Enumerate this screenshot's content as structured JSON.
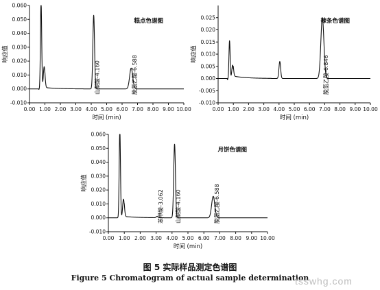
{
  "figure": {
    "caption_cn": "图 5 实际样品测定色谱图",
    "caption_en": "Figure 5 Chromatogram of actual sample determination",
    "watermark": "tsswhg.com"
  },
  "chart_data": [
    {
      "type": "line",
      "title": "糕点色谱图",
      "xlabel": "时间 (min)",
      "ylabel": "响应值",
      "xlim": [
        0,
        10
      ],
      "ylim": [
        -0.01,
        0.06
      ],
      "xticks": [
        "0.00",
        "1.00",
        "2.00",
        "3.00",
        "4.00",
        "5.00",
        "6.00",
        "7.00",
        "8.00",
        "9.00",
        "10.00"
      ],
      "yticks": [
        "-0.010",
        "0.000",
        "0.010",
        "0.020",
        "0.030",
        "0.040",
        "0.050",
        "0.060"
      ],
      "peaks": [
        {
          "rt": 0.75,
          "height": 0.064
        },
        {
          "rt": 0.95,
          "height": 0.0165
        },
        {
          "rt": 4.16,
          "height": 0.053
        },
        {
          "rt": 6.588,
          "height": 0.015
        }
      ],
      "annotations": [
        {
          "x": 4.16,
          "text": "山梨酸-4.160"
        },
        {
          "x": 6.588,
          "text": "脱氢乙酸-6.588"
        }
      ]
    },
    {
      "type": "line",
      "title": "辣条色谱图",
      "xlabel": "时间 (min)",
      "ylabel": "响应值",
      "xlim": [
        0,
        10
      ],
      "ylim": [
        -0.01,
        0.03
      ],
      "xticks": [
        "0.00",
        "1.00",
        "2.00",
        "3.00",
        "4.00",
        "5.00",
        "6.00",
        "7.00",
        "8.00",
        "9.00",
        "10.00"
      ],
      "yticks": [
        "-0.010",
        "-0.005",
        "0.000",
        "0.005",
        "0.010",
        "0.015",
        "0.020",
        "0.025"
      ],
      "peaks": [
        {
          "rt": 0.75,
          "height": 0.016
        },
        {
          "rt": 0.95,
          "height": 0.006
        },
        {
          "rt": 4.05,
          "height": 0.007
        },
        {
          "rt": 6.846,
          "height": 0.025
        }
      ],
      "annotations": [
        {
          "x": 6.846,
          "text": "脱氢乙酸-6.846"
        }
      ]
    },
    {
      "type": "line",
      "title": "月饼色谱图",
      "xlabel": "时间 (min)",
      "ylabel": "响应值",
      "xlim": [
        0,
        10
      ],
      "ylim": [
        -0.01,
        0.06
      ],
      "xticks": [
        "0.00",
        "1.00",
        "2.00",
        "3.00",
        "4.00",
        "5.00",
        "6.00",
        "7.00",
        "8.00",
        "9.00",
        "10.00"
      ],
      "yticks": [
        "-0.010",
        "0.000",
        "0.010",
        "0.020",
        "0.030",
        "0.040",
        "0.050",
        "0.060"
      ],
      "peaks": [
        {
          "rt": 0.72,
          "height": 0.064
        },
        {
          "rt": 0.95,
          "height": 0.014
        },
        {
          "rt": 3.062,
          "height": 0.001
        },
        {
          "rt": 4.16,
          "height": 0.053
        },
        {
          "rt": 6.588,
          "height": 0.0155
        }
      ],
      "annotations": [
        {
          "x": 3.062,
          "text": "苯甲酸-3.062"
        },
        {
          "x": 4.16,
          "text": "山梨酸-4.160"
        },
        {
          "x": 6.588,
          "text": "脱氢乙酸-6.588"
        }
      ]
    }
  ]
}
